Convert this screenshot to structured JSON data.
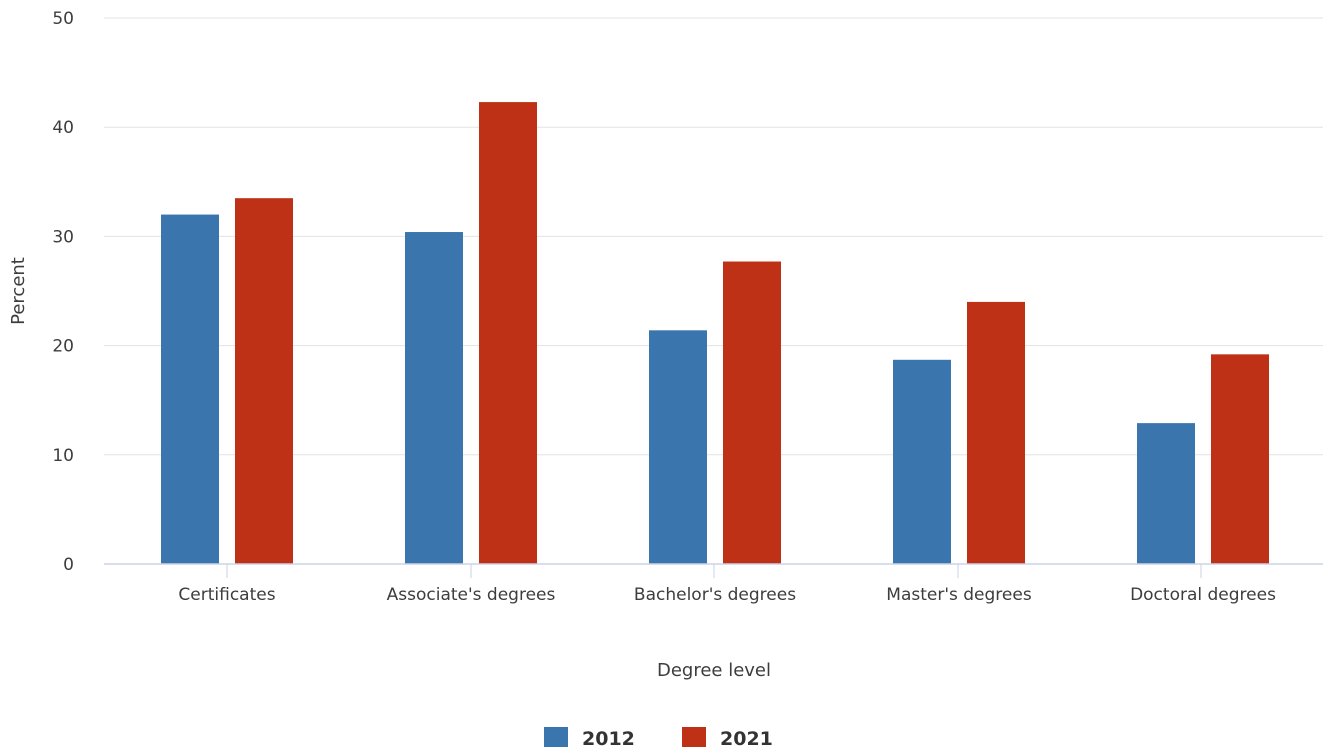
{
  "chart_data": {
    "type": "bar",
    "xlabel": "Degree level",
    "ylabel": "Percent",
    "ylim": [
      0,
      50
    ],
    "yticks": [
      0,
      10,
      20,
      30,
      40,
      50
    ],
    "grid": true,
    "legend_position": "bottom-center",
    "categories": [
      "Certificates",
      "Associate's degrees",
      "Bachelor's degrees",
      "Master's degrees",
      "Doctoral degrees"
    ],
    "series": [
      {
        "name": "2012",
        "color": "#3a75ad",
        "values": [
          32.0,
          30.4,
          21.4,
          18.7,
          12.9
        ]
      },
      {
        "name": "2021",
        "color": "#bf3116",
        "values": [
          33.5,
          42.3,
          27.7,
          24.0,
          19.2
        ]
      }
    ]
  }
}
